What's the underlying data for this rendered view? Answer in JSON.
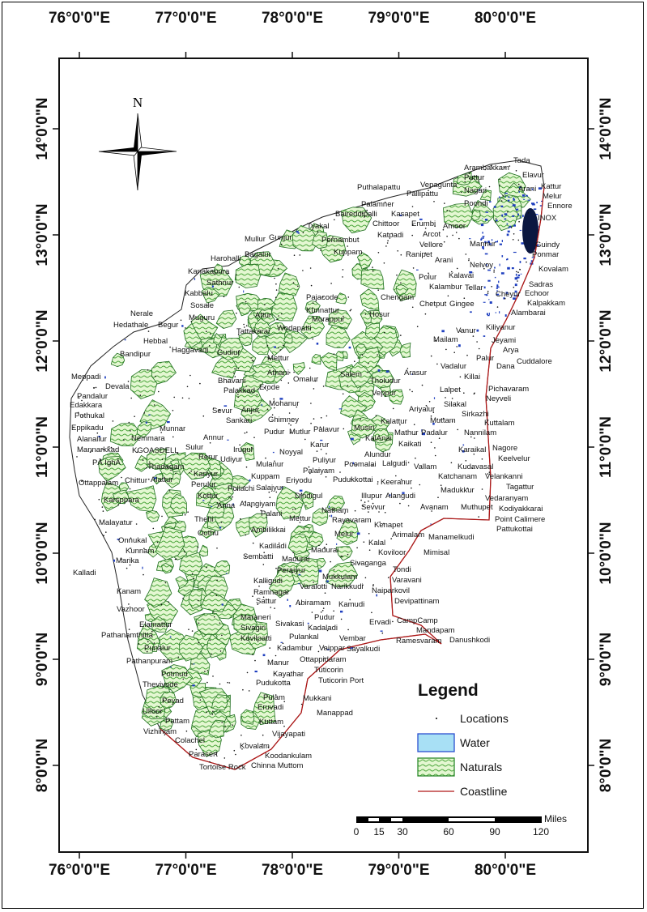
{
  "map": {
    "graticule": {
      "longitudes": [
        "76°0'0\"E",
        "77°0'0\"E",
        "78°0'0\"E",
        "79°0'0\"E",
        "80°0'0\"E"
      ],
      "latitudes": [
        "14°0'0\"N",
        "13°0'0\"N",
        "12°0'0\"N",
        "11°0'0\"N",
        "10°0'0\"N",
        "9°0'0\"N",
        "8°0'0\"N"
      ]
    },
    "north_arrow": {
      "label": "N"
    },
    "colors": {
      "naturals": "#2e8b2e",
      "naturals_fill": "#dff5c8",
      "water": "#1f3fbf",
      "water_legend": "#a8e0f5",
      "coastline": "#b01818",
      "boundary": "#111111"
    },
    "places": [
      "Tada",
      "Arambakkam",
      "Elavur",
      "Puttur",
      "Vepagunta",
      "Puthalapattu",
      "Pallipattu",
      "Kattur",
      "Nagari",
      "Arani",
      "Melur",
      "Palamner",
      "Kasapet",
      "Ennore",
      "Baireddipalli",
      "Chittoor",
      "Erumbi",
      "Poondi",
      "INOX",
      "Katpadi",
      "Amoor",
      "Arcot",
      "Tyakal",
      "Pernambut",
      "Mullur",
      "Gunjur",
      "Bagalur",
      "Vellore",
      "Mannur",
      "Guindy",
      "Ponmar",
      "Harohalli",
      "Kuppam",
      "Ranipet",
      "Arani",
      "Kovalam",
      "Kanakapura",
      "Nelvoy",
      "Kalavai",
      "Polur",
      "Sadras",
      "Kalambur",
      "Tellar",
      "Echoor",
      "Sathnur",
      "Kabbalu",
      "Chengam",
      "Cheyur",
      "Kalpakkam",
      "Pajacode",
      "Sosale",
      "Chetput",
      "Gingee",
      "Alambarai",
      "Nerale",
      "Muguru",
      "Kunnattur",
      "Hedathale",
      "Begur",
      "Morappur",
      "Kiliyanur",
      "Vanur",
      "Jeyami",
      "Wodapatti",
      "Tattakarai",
      "Mailam",
      "Arya",
      "Hebbal",
      "Dana",
      "Palur",
      "Cuddalore",
      "Bandipur",
      "Haggavadi",
      "Gudiur",
      "Meppadi",
      "Devala",
      "Pandalur",
      "Edakkara",
      "Pothukal",
      "Eppikadu",
      "Alanallur",
      "Mannarkkad",
      "PĀ IghĀ",
      "Ottappalam",
      "Karsppara",
      "Malayatur",
      "Onnukal",
      "Kunnam",
      "Marika",
      "Kanam",
      "Vazhoor",
      "Elamattur",
      "Pathanamthitta",
      "Punalur",
      "Pathanpuram",
      "Potmud",
      "Theviyode",
      "Peyad",
      "Ulloor",
      "Pattam",
      "Vizhinjam",
      "Colachel",
      "Parasert",
      "Tortoise Rock",
      "Chinna Muttom",
      "Koodankulam",
      "Kovalam",
      "Vijayapati",
      "Kuttam",
      "Eruvadi",
      "Pulam",
      "Mukkani",
      "Manappad",
      "Pudukotta",
      "Kayathar",
      "Tuticorin Port",
      "Tuticorin",
      "Ottappidaram",
      "Manur",
      "Kadambur",
      "Vaippar",
      "Sayalkudi",
      "Pulankal",
      "Vembar",
      "Kovilpatti",
      "Kadaladi",
      "Sivagiri",
      "Sivakasi",
      "Ervadi",
      "CampCamp",
      "Mandapam",
      "Ramesvaram",
      "Danushkodi",
      "Maraneri",
      "Pudur",
      "Sattur",
      "Ramnagar",
      "Abiramam",
      "Kamudi",
      "Devipattinam",
      "Kalligudi",
      "Varalotti",
      "Narikkudi",
      "Naiparkovil",
      "Varavani",
      "Tondi",
      "Mukkulam",
      "Peraiyur",
      "Sivaganga",
      "Madurai",
      "Madurai",
      "Mimisal",
      "Koviloor",
      "Melur",
      "Kalal",
      "Manamelkudi",
      "Arimalam",
      "Kenapet",
      "Rayavaram",
      "Natham",
      "Mettur",
      "Sevvur",
      "Alangudi",
      "Avanam",
      "Illupur",
      "Dindigul",
      "Pudukkottai",
      "Eriyodu",
      "Poomalai",
      "Keeranur",
      "Palaiyam",
      "Alundur",
      "Puliyur",
      "Vallam",
      "KalAnai",
      "Musiri",
      "Kaikati",
      "Lalgudi",
      "Karur",
      "Noyyal",
      "Kudavasal",
      "Katchanam",
      "Madukkur",
      "Muthupet",
      "Pattukottai",
      "Point Calimere",
      "Kodiyakkarai",
      "Vedaranyam",
      "Tagattur",
      "Velankanni",
      "Keelvelur",
      "Nagore",
      "Karaikal",
      "Nannilam",
      "Kuttalam",
      "Sirkazhi",
      "Muttam",
      "Silakal",
      "Lalpet",
      "Neyveli",
      "Pichavaram",
      "Killai",
      "Vadalur",
      "Arasur",
      "Tholudur",
      "Veppur",
      "Kalattur",
      "Ariyalur",
      "Mathur",
      "Padalur",
      "Palavur",
      "Mohanur",
      "Erode",
      "Sankari",
      "Ghimney",
      "Pudur",
      "Mutlur",
      "Anjur",
      "Sevur",
      "Annur",
      "Sulur",
      "Rerur",
      "Irugur",
      "Udiyur",
      "Mulanur",
      "Kuppam",
      "Kariyur",
      "Pollachi",
      "Salajyur",
      "Perulur",
      "Kottur",
      "Alangiyam",
      "Palani",
      "Anna",
      "Ambilikkai",
      "Oothu",
      "Munnar",
      "KGOASDELL",
      "Thadagam",
      "Chittur",
      "Alattur",
      "Nemmara",
      "Palakkad",
      "Bhavani",
      "Athani",
      "Mettur",
      "Omalur",
      "Salem",
      "Attur",
      "Hosur",
      "Kadiladi",
      "Sembatti",
      "Thehi",
      "Kalladi"
    ]
  },
  "legend": {
    "title": "Legend",
    "items": [
      {
        "label": "Locations",
        "symbol": "dot"
      },
      {
        "label": "Water",
        "symbol": "rect"
      },
      {
        "label": "Naturals",
        "symbol": "pattern"
      },
      {
        "label": "Coastline",
        "symbol": "line"
      }
    ]
  },
  "scale_bar": {
    "unit": "Miles",
    "ticks": [
      "0",
      "15",
      "30",
      "60",
      "90",
      "120"
    ]
  }
}
